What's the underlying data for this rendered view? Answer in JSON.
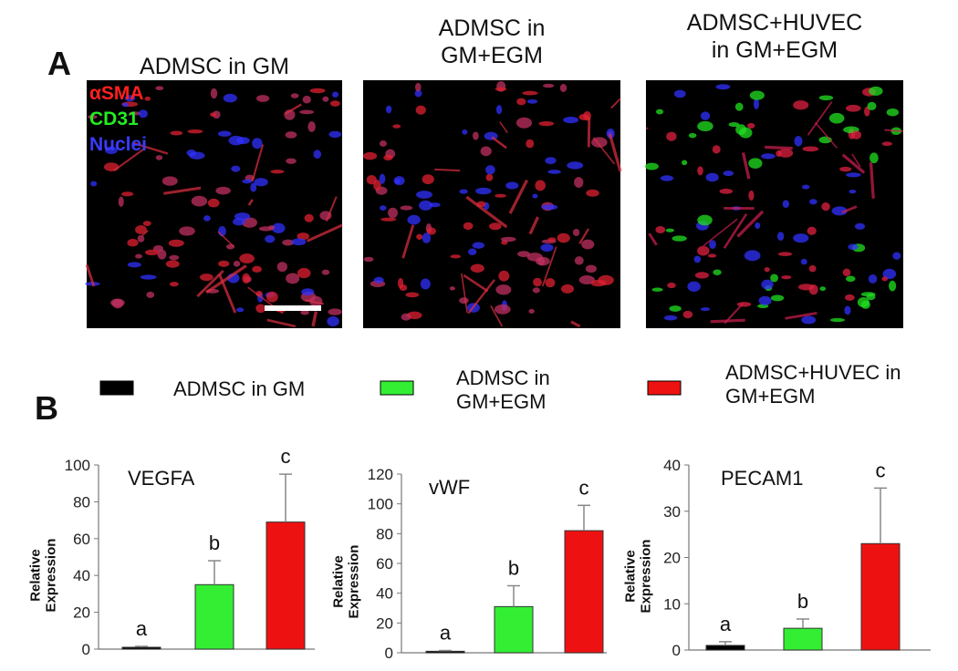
{
  "panel_a": {
    "label": "A",
    "images": [
      {
        "title": "ADMSC in GM"
      },
      {
        "title": "ADMSC in\nGM+EGM"
      },
      {
        "title": "ADMSC+HUVEC\nin GM+EGM"
      }
    ],
    "stains": [
      {
        "text": "αSMA",
        "color": "#ff2020"
      },
      {
        "text": "CD31",
        "color": "#22ee22"
      },
      {
        "text": "Nuclei",
        "color": "#3a3aff"
      }
    ]
  },
  "panel_b": {
    "label": "B"
  },
  "chart_data": [
    {
      "type": "bar",
      "title": "VEGFA",
      "ylabel": "Relative\nExpression",
      "ylim": [
        0,
        100
      ],
      "yticks": [
        0,
        20,
        40,
        60,
        80,
        100
      ],
      "series": [
        {
          "name": "ADMSC in GM",
          "color": "#000000",
          "values": [
            1
          ],
          "errors": [
            0.5
          ]
        },
        {
          "name": "ADMSC in\nGM+EGM",
          "color": "#33ee33",
          "values": [
            35
          ],
          "errors": [
            13
          ]
        },
        {
          "name": "ADMSC+HUVEC in\nGM+EGM",
          "color": "#ee1111",
          "values": [
            69
          ],
          "errors": [
            26
          ]
        }
      ],
      "annotations": [
        "a",
        "b",
        "c"
      ]
    },
    {
      "type": "bar",
      "title": "vWF",
      "ylabel": "Relative\nExpression",
      "ylim": [
        0,
        120
      ],
      "yticks": [
        0,
        20,
        40,
        60,
        80,
        100,
        120
      ],
      "series": [
        {
          "color": "#000000",
          "values": [
            1
          ],
          "errors": [
            0.5
          ]
        },
        {
          "color": "#33ee33",
          "values": [
            31
          ],
          "errors": [
            14
          ]
        },
        {
          "color": "#ee1111",
          "values": [
            82
          ],
          "errors": [
            17
          ]
        }
      ],
      "annotations": [
        "a",
        "b",
        "c"
      ]
    },
    {
      "type": "bar",
      "title": "PECAM1",
      "ylabel": "Relative\nExpression",
      "ylim": [
        0,
        40
      ],
      "yticks": [
        0,
        10,
        20,
        30,
        40
      ],
      "series": [
        {
          "color": "#000000",
          "values": [
            1
          ],
          "errors": [
            0.8
          ]
        },
        {
          "color": "#33ee33",
          "values": [
            4.7
          ],
          "errors": [
            2
          ]
        },
        {
          "color": "#ee1111",
          "values": [
            23
          ],
          "errors": [
            12
          ]
        }
      ],
      "annotations": [
        "a",
        "b",
        "c"
      ]
    }
  ]
}
